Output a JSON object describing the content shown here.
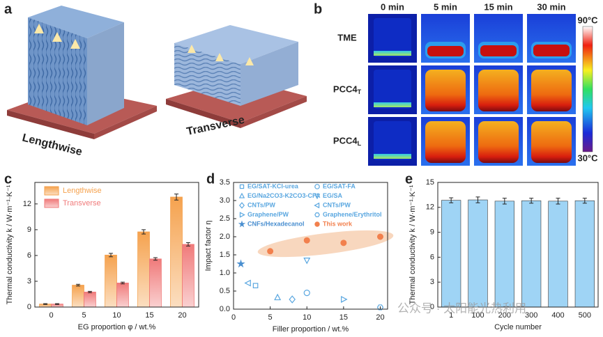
{
  "panel_a": {
    "letter": "a",
    "left_label": "Lengthwise",
    "right_label": "Transverse"
  },
  "panel_b": {
    "letter": "b",
    "columns": [
      "0 min",
      "5 min",
      "15 min",
      "30 min"
    ],
    "rows": [
      {
        "label": "TME"
      },
      {
        "label": "PCC4",
        "sub": "T"
      },
      {
        "label": "PCC4",
        "sub": "L"
      }
    ],
    "scale_max": "90°C",
    "scale_min": "30°C"
  },
  "watermark": "公众号 · 太阳能光热利用",
  "chart_data": [
    {
      "type": "bar",
      "letter": "c",
      "categories": [
        "0",
        "5",
        "10",
        "15",
        "20"
      ],
      "series": [
        {
          "name": "Lengthwise",
          "color": "#f5a24e",
          "values": [
            0.35,
            2.55,
            6.05,
            8.75,
            12.8
          ],
          "errors": [
            0.05,
            0.1,
            0.2,
            0.25,
            0.35
          ]
        },
        {
          "name": "Transverse",
          "color": "#f07a7a",
          "values": [
            0.35,
            1.75,
            2.8,
            5.6,
            7.3
          ],
          "errors": [
            0.05,
            0.08,
            0.1,
            0.15,
            0.2
          ]
        }
      ],
      "ylim": [
        0,
        14.5
      ],
      "yticks": [
        0,
        3,
        6,
        9,
        12
      ],
      "ylabel": "Thermal conductivity k / W·m⁻¹·K⁻¹",
      "xlabel": "EG proportion φ / wt.%",
      "legend": "upper left"
    },
    {
      "type": "scatter",
      "letter": "d",
      "series": [
        {
          "name": "EG/SAT-KCl-urea",
          "color": "#5aa7e0",
          "marker": "square",
          "filled": false,
          "x": [
            3
          ],
          "values": [
            0.65
          ]
        },
        {
          "name": "EG/SAT-FA",
          "color": "#5aa7e0",
          "marker": "circle",
          "filled": false,
          "x": [
            10
          ],
          "values": [
            0.45
          ]
        },
        {
          "name": "EG/Na2CO3-K2CO3-CFA",
          "color": "#5aa7e0",
          "marker": "triangle-up",
          "filled": false,
          "x": [
            6
          ],
          "values": [
            0.32
          ]
        },
        {
          "name": "EG/SA",
          "color": "#5aa7e0",
          "marker": "triangle-down",
          "filled": false,
          "x": [
            10
          ],
          "values": [
            1.35
          ]
        },
        {
          "name": "CNTs/PW",
          "color": "#5aa7e0",
          "marker": "diamond",
          "filled": false,
          "x": [
            8
          ],
          "values": [
            0.27
          ]
        },
        {
          "name": "CNTs/PW",
          "color": "#5aa7e0",
          "marker": "triangle-left",
          "filled": false,
          "x": [
            2
          ],
          "values": [
            0.72
          ]
        },
        {
          "name": "Graphene/PW",
          "color": "#5aa7e0",
          "marker": "triangle-right",
          "filled": false,
          "x": [
            15
          ],
          "values": [
            0.27
          ]
        },
        {
          "name": "Graphene/Erythritol",
          "color": "#5aa7e0",
          "marker": "hexagon",
          "filled": false,
          "x": [
            20
          ],
          "values": [
            0.05
          ]
        },
        {
          "name": "CNFs/Hexadecanol",
          "color": "#4a8fd0",
          "marker": "star",
          "filled": true,
          "x": [
            1
          ],
          "values": [
            1.25
          ]
        },
        {
          "name": "This work",
          "color": "#f2804d",
          "marker": "circle",
          "filled": true,
          "x": [
            5,
            10,
            15,
            20
          ],
          "values": [
            1.6,
            1.9,
            1.83,
            2.0
          ]
        }
      ],
      "xlim": [
        0,
        21
      ],
      "xticks": [
        0,
        5,
        10,
        15,
        20
      ],
      "ylim": [
        0,
        3.5
      ],
      "yticks": [
        {
          "value": 0,
          "label": "0.0"
        },
        0.5,
        {
          "value": 1,
          "label": "1.0"
        },
        1.5,
        {
          "value": 2,
          "label": "2.0"
        },
        2.5,
        {
          "value": 3,
          "label": "3.0"
        },
        3.5
      ],
      "ylabel": "Impact factor η",
      "xlabel": "Filler proportion / wt.%",
      "legend": "upper left"
    },
    {
      "type": "bar",
      "letter": "e",
      "categories": [
        "1",
        "100",
        "200",
        "300",
        "400",
        "500"
      ],
      "values": [
        12.85,
        12.9,
        12.75,
        12.8,
        12.75,
        12.8
      ],
      "errors": [
        0.3,
        0.35,
        0.35,
        0.3,
        0.35,
        0.3
      ],
      "color": "#9fd4f5",
      "ylim": [
        0,
        15
      ],
      "yticks": [
        0,
        3,
        6,
        9,
        12,
        15
      ],
      "ylabel": "Thermal conductivity k / W·m⁻¹·K⁻¹",
      "xlabel": "Cycle number"
    }
  ]
}
